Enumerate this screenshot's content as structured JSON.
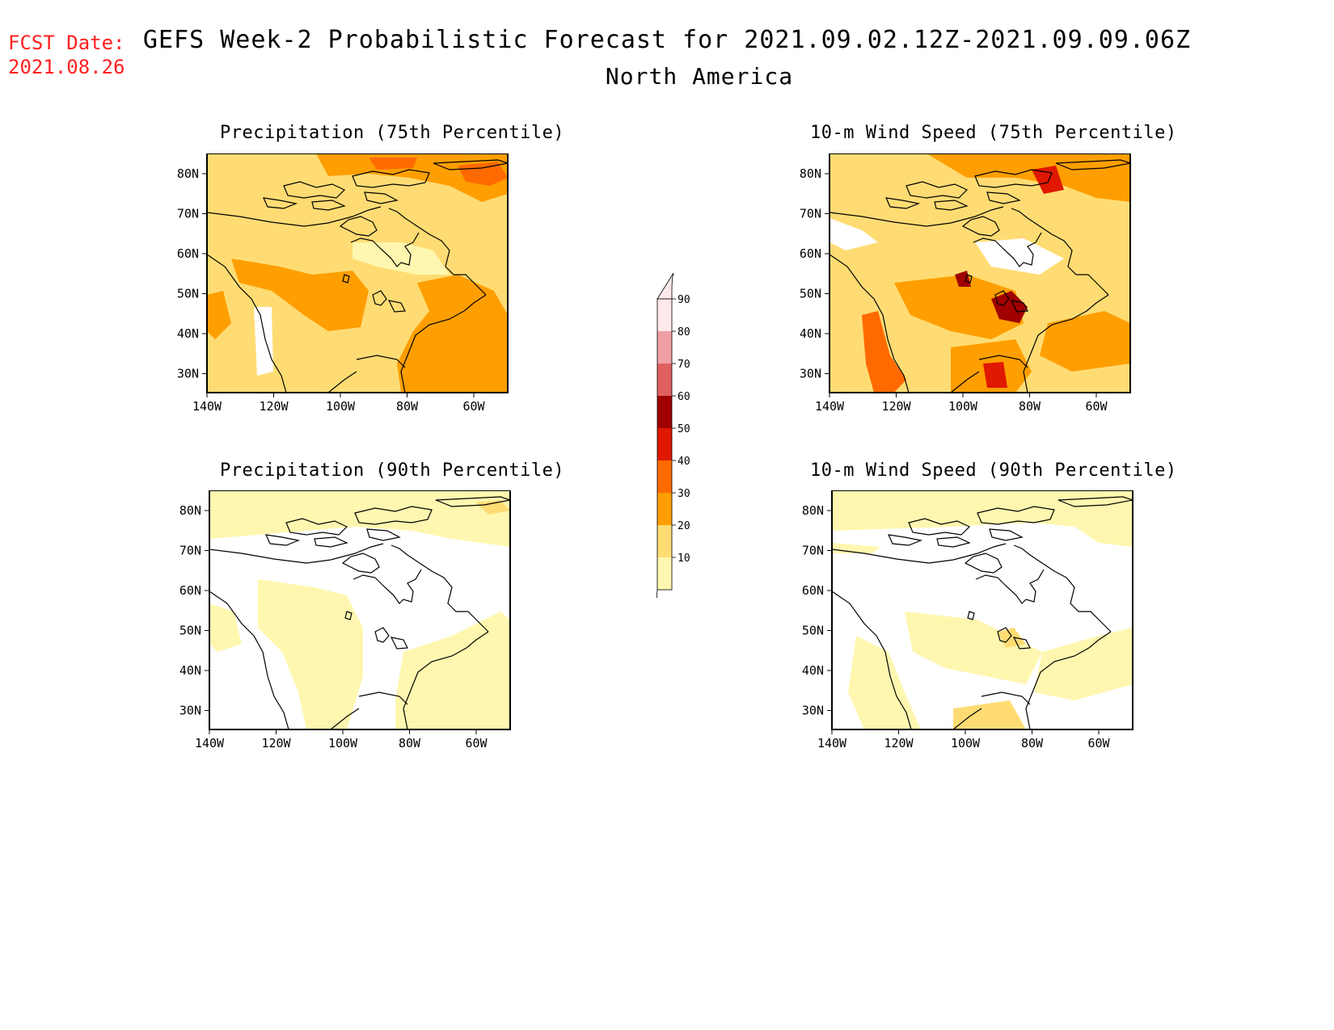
{
  "fcst_label": "FCST Date:",
  "fcst_date": "2021.08.26",
  "title_line1": "GEFS Week-2 Probabilistic Forecast for 2021.09.02.12Z-2021.09.09.06Z",
  "title_line2": "North America",
  "panels": [
    {
      "title": "Precipitation (75th Percentile)",
      "level": "high"
    },
    {
      "title": "10-m Wind Speed (75th Percentile)",
      "level": "high"
    },
    {
      "title": "Precipitation (90th Percentile)",
      "level": "low"
    },
    {
      "title": "10-m Wind Speed (90th Percentile)",
      "level": "low"
    }
  ],
  "lat_ticks": [
    "80N",
    "70N",
    "60N",
    "50N",
    "40N",
    "30N"
  ],
  "lon_ticks": [
    "140W",
    "120W",
    "100W",
    "80W",
    "60W"
  ],
  "colorbar": {
    "levels": [
      "90",
      "80",
      "70",
      "60",
      "50",
      "40",
      "30",
      "20",
      "10"
    ],
    "colors": [
      "#fde8ea",
      "#f0a0a4",
      "#e06060",
      "#a00000",
      "#e01800",
      "#ff6a00",
      "#ff9e00",
      "#ffdc73",
      "#fff7b0"
    ]
  }
}
